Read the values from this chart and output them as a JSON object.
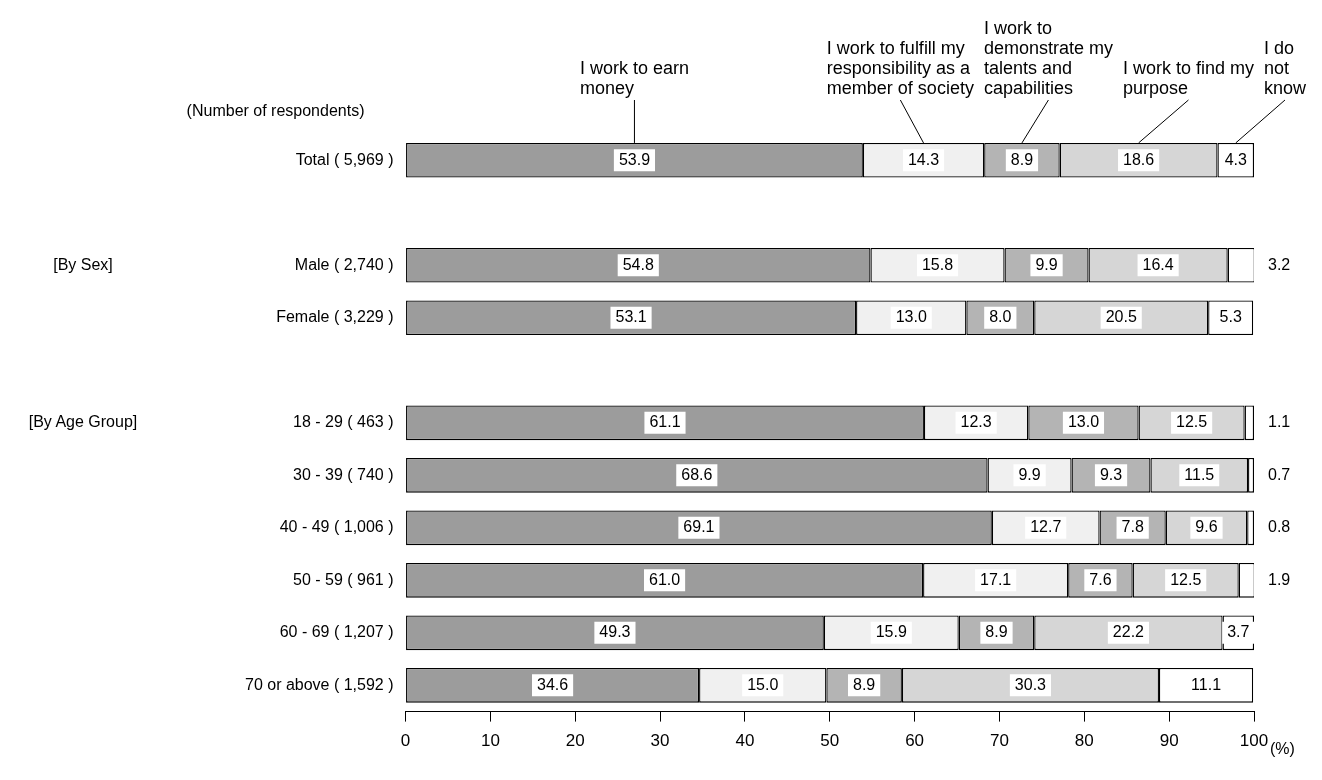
{
  "chart_data": {
    "type": "bar",
    "orientation": "horizontal",
    "stacked": true,
    "grid": false,
    "xlabel": "(%)",
    "categories": [
      "Total ( 5,969 )",
      null,
      "Male ( 2,740 )",
      "Female ( 3,229 )",
      null,
      "18 - 29 ( 463 )",
      "30 - 39 ( 740 )",
      "40 - 49 ( 1,006 )",
      "50 - 59 ( 961 )",
      "60 - 69 ( 1,207 )",
      "70 or above ( 1,592 )"
    ],
    "xlim": [
      0,
      100
    ],
    "xticks": [
      0,
      10,
      20,
      30,
      40,
      50,
      60,
      70,
      80,
      90,
      100
    ],
    "annotations": [
      "(Number of respondents)",
      "[By Sex]",
      "[By Age Group]"
    ],
    "series": [
      {
        "name": "I work to earn money",
        "color": "#9c9c9c",
        "values": [
          53.9,
          null,
          54.8,
          53.1,
          null,
          61.1,
          68.6,
          69.1,
          61.0,
          49.3,
          34.6
        ],
        "value_labels": [
          "53.9",
          null,
          "54.8",
          "53.1",
          null,
          "61.1",
          "68.6",
          "69.1",
          "61.0",
          "49.3",
          "34.6"
        ]
      },
      {
        "name": "I work to fulfill my responsibility as a member of society",
        "color": "#f0f0f0",
        "values": [
          14.3,
          null,
          15.8,
          13.0,
          null,
          12.3,
          9.9,
          12.7,
          17.1,
          15.9,
          15.0
        ],
        "value_labels": [
          "14.3",
          null,
          "15.8",
          "13.0",
          null,
          "12.3",
          "9.9",
          "12.7",
          "17.1",
          "15.9",
          "15.0"
        ]
      },
      {
        "name": "I work to demonstrate my talents and capabilities",
        "color": "#b4b4b4",
        "values": [
          8.9,
          null,
          9.9,
          8.0,
          null,
          13.0,
          9.3,
          7.8,
          7.6,
          8.9,
          8.9
        ],
        "value_labels": [
          "8.9",
          null,
          "9.9",
          "8.0",
          null,
          "13.0",
          "9.3",
          "7.8",
          "7.6",
          "8.9",
          "8.9"
        ]
      },
      {
        "name": "I work to find my purpose",
        "color": "#d6d6d6",
        "values": [
          18.6,
          null,
          16.4,
          20.5,
          null,
          12.5,
          11.5,
          9.6,
          12.5,
          22.2,
          30.3
        ],
        "value_labels": [
          "18.6",
          null,
          "16.4",
          "20.5",
          null,
          "12.5",
          "11.5",
          "9.6",
          "12.5",
          "22.2",
          "30.3"
        ]
      },
      {
        "name": "I do not know",
        "color": "#ffffff",
        "values": [
          4.3,
          null,
          3.2,
          5.3,
          null,
          1.1,
          0.7,
          0.8,
          1.9,
          3.7,
          11.1
        ],
        "value_labels": [
          "4.3",
          null,
          "3.2",
          "5.3",
          null,
          "1.1",
          "0.7",
          "0.8",
          "1.9",
          "3.7",
          "11.1"
        ]
      }
    ]
  }
}
